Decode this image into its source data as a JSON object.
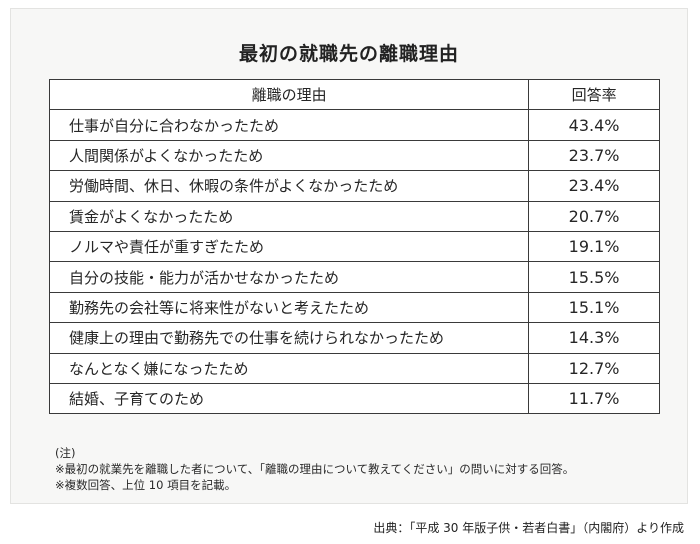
{
  "title": "最初の就職先の離職理由",
  "table": {
    "headers": {
      "reason": "離職の理由",
      "rate": "回答率"
    },
    "rows": [
      {
        "reason": "仕事が自分に合わなかったため",
        "rate": "43.4%"
      },
      {
        "reason": "人間関係がよくなかったため",
        "rate": "23.7%"
      },
      {
        "reason": "労働時間、休日、休暇の条件がよくなかったため",
        "rate": "23.4%"
      },
      {
        "reason": "賃金がよくなかったため",
        "rate": "20.7%"
      },
      {
        "reason": "ノルマや責任が重すぎたため",
        "rate": "19.1%"
      },
      {
        "reason": "自分の技能・能力が活かせなかったため",
        "rate": "15.5%"
      },
      {
        "reason": "勤務先の会社等に将来性がないと考えたため",
        "rate": "15.1%"
      },
      {
        "reason": "健康上の理由で勤務先での仕事を続けられなかったため",
        "rate": "14.3%"
      },
      {
        "reason": "なんとなく嫌になったため",
        "rate": "12.7%"
      },
      {
        "reason": "結婚、子育てのため",
        "rate": "11.7%"
      }
    ]
  },
  "notes": {
    "label": "(注)",
    "lines": [
      "※最初の就業先を離職した者について、「離職の理由について教えてください」の問いに対する回答。",
      "※複数回答、上位 10 項目を記載。"
    ]
  },
  "source": "出典：「平成 30 年版子供・若者白書」（内閣府）より作成"
}
